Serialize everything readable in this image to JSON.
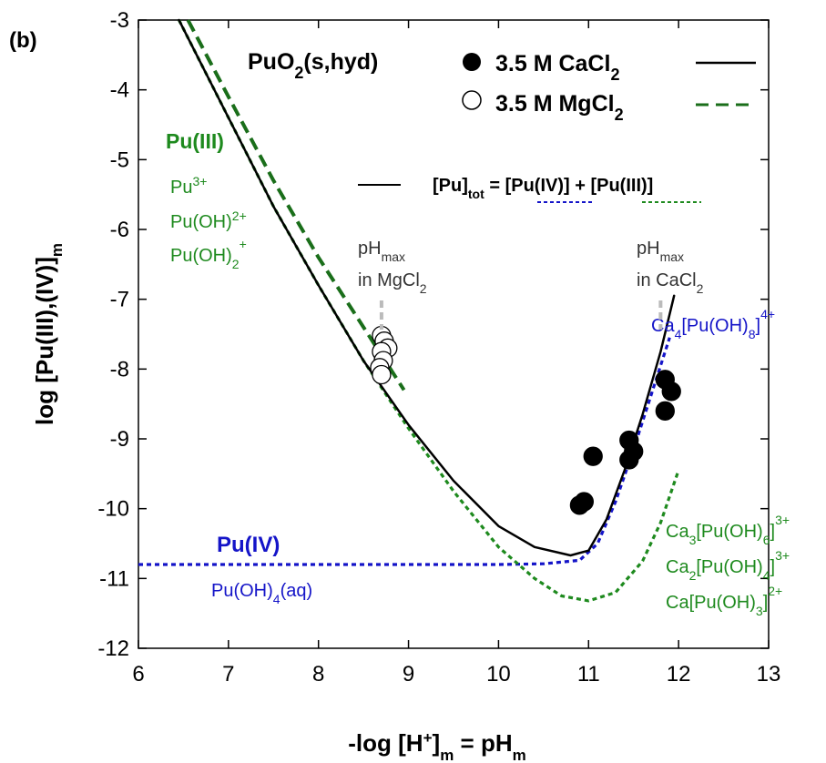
{
  "chart_data": {
    "type": "scatter",
    "panel_label": "(b)",
    "xlabel": "-log [H⁺]m = pHm",
    "ylabel": "log [Pu(III),(IV)]m",
    "xlim": [
      6,
      13
    ],
    "ylim": [
      -12,
      -3
    ],
    "x_ticks": [
      6,
      7,
      8,
      9,
      10,
      11,
      12,
      13
    ],
    "y_ticks": [
      -3,
      -4,
      -5,
      -6,
      -7,
      -8,
      -9,
      -10,
      -11,
      -12
    ],
    "grid": false,
    "legend": {
      "solid_phase": "PuO2(s,hyd)",
      "cacl2_label": "3.5 M CaCl2",
      "mgcl2_label": "3.5 M MgCl2",
      "tot_label": "[Pu]tot = [Pu(IV)] + [Pu(III)]"
    },
    "series": [
      {
        "name": "3.5 M CaCl2",
        "kind": "points",
        "marker": "filled-circle",
        "x": [
          10.95,
          10.9,
          11.05,
          11.45,
          11.45,
          11.5,
          11.85,
          11.85,
          11.92
        ],
        "y": [
          -9.9,
          -9.95,
          -9.25,
          -9.02,
          -9.3,
          -9.18,
          -8.15,
          -8.6,
          -8.32
        ]
      },
      {
        "name": "3.5 M MgCl2",
        "kind": "points",
        "marker": "open-circle",
        "x": [
          8.7,
          8.73,
          8.77,
          8.7,
          8.72,
          8.68,
          8.7
        ],
        "y": [
          -7.52,
          -7.6,
          -7.7,
          -7.75,
          -7.88,
          -7.98,
          -8.08
        ]
      },
      {
        "name": "[Pu]tot (3.5 M CaCl2)",
        "kind": "line",
        "color": "#000000",
        "style": "solid",
        "x": [
          6.45,
          7.0,
          7.5,
          8.0,
          8.5,
          9.0,
          9.5,
          10.0,
          10.4,
          10.8,
          11.0,
          11.2,
          11.4,
          11.6,
          11.8,
          11.95
        ],
        "y": [
          -3.0,
          -4.4,
          -5.67,
          -6.8,
          -7.88,
          -8.8,
          -9.6,
          -10.25,
          -10.55,
          -10.67,
          -10.6,
          -10.15,
          -9.45,
          -8.65,
          -7.75,
          -6.95
        ]
      },
      {
        "name": "[Pu]tot (3.5 M MgCl2)",
        "kind": "line",
        "color": "#1a6e1a",
        "style": "dashed",
        "x": [
          6.55,
          7.0,
          7.5,
          8.0,
          8.5,
          8.95
        ],
        "y": [
          -3.0,
          -4.1,
          -5.3,
          -6.4,
          -7.4,
          -8.3
        ]
      },
      {
        "name": "Pu(IV)",
        "kind": "line",
        "color": "#1414c8",
        "style": "dotted",
        "x": [
          6.0,
          8.0,
          10.0,
          10.5,
          10.9,
          11.1,
          11.3,
          11.5,
          11.7,
          11.9
        ],
        "y": [
          -10.8,
          -10.8,
          -10.8,
          -10.79,
          -10.74,
          -10.5,
          -9.9,
          -9.15,
          -8.35,
          -7.55
        ]
      },
      {
        "name": "Pu(III)",
        "kind": "line",
        "color": "#1e8a1e",
        "style": "dotted",
        "x": [
          6.45,
          7.0,
          7.5,
          8.0,
          8.5,
          9.0,
          9.5,
          10.0,
          10.4,
          10.7,
          11.0,
          11.3,
          11.6,
          11.8,
          12.0
        ],
        "y": [
          -3.0,
          -4.4,
          -5.67,
          -6.8,
          -7.88,
          -8.85,
          -9.75,
          -10.55,
          -11.0,
          -11.25,
          -11.32,
          -11.2,
          -10.75,
          -10.2,
          -9.45
        ]
      }
    ],
    "annotations": {
      "pu3": {
        "label": "Pu(III)",
        "species": [
          {
            "base": "Pu",
            "sub": "",
            "sup": "3+"
          },
          {
            "base": "Pu(OH)",
            "sub": "",
            "sup": "2+"
          },
          {
            "base": "Pu(OH)",
            "sub": "2",
            "sup": "+"
          }
        ]
      },
      "pu4": {
        "label": "Pu(IV)",
        "species": "Pu(OH)4(aq)"
      },
      "ternary_green": [
        {
          "base": "Ca3[Pu(OH)6]",
          "sup": "3+"
        },
        {
          "base": "Ca2[Pu(OH)4]",
          "sup": "3+"
        },
        {
          "base": "Ca[Pu(OH)3]",
          "sup": "2+"
        }
      ],
      "ternary_blue": {
        "base": "Ca4[Pu(OH)8]",
        "sup": "4+"
      },
      "phmax_mg": {
        "line1": "pHmax",
        "line2": "in MgCl2",
        "x": 8.7
      },
      "phmax_ca": {
        "line1": "pHmax",
        "line2": "in CaCl2",
        "x": 11.8
      }
    }
  }
}
